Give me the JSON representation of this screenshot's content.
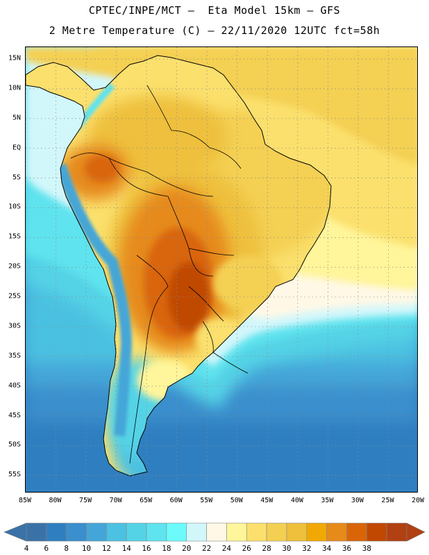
{
  "title_line1": "CPTEC/INPE/MCT –  Eta Model 15km – GFS",
  "title_line2": "2 Metre Temperature (C) – 22/11/2020 12UTC fct=58h",
  "map": {
    "lat_labels": [
      "15N",
      "10N",
      "5N",
      "EQ",
      "5S",
      "10S",
      "15S",
      "20S",
      "25S",
      "30S",
      "35S",
      "40S",
      "45S",
      "50S",
      "55S"
    ],
    "lat_values": [
      15,
      10,
      5,
      0,
      -5,
      -10,
      -15,
      -20,
      -25,
      -30,
      -35,
      -40,
      -45,
      -50,
      -55
    ],
    "lon_labels": [
      "85W",
      "80W",
      "75W",
      "70W",
      "65W",
      "60W",
      "55W",
      "50W",
      "45W",
      "40W",
      "35W",
      "30W",
      "25W",
      "20W"
    ],
    "lon_values": [
      -85,
      -80,
      -75,
      -70,
      -65,
      -60,
      -55,
      -50,
      -45,
      -40,
      -35,
      -30,
      -25,
      -20
    ],
    "lat_range": [
      -58,
      17
    ],
    "lon_range": [
      -85,
      -20
    ],
    "graticule": "dotted"
  },
  "colorbar": {
    "labels": [
      "4",
      "6",
      "8",
      "10",
      "12",
      "14",
      "16",
      "18",
      "20",
      "22",
      "24",
      "26",
      "28",
      "30",
      "32",
      "34",
      "36",
      "38"
    ],
    "colors": [
      "#3a72a8",
      "#2f7fc0",
      "#3a8fcc",
      "#44a6d8",
      "#4cc1e1",
      "#55d3e6",
      "#5fe3ee",
      "#6cfafa",
      "#d2f7fb",
      "#fff8e6",
      "#fff59a",
      "#fbe06d",
      "#f4d052",
      "#eec03c",
      "#f2a804",
      "#e68a1a",
      "#d96508",
      "#c04800",
      "#b14012"
    ]
  }
}
